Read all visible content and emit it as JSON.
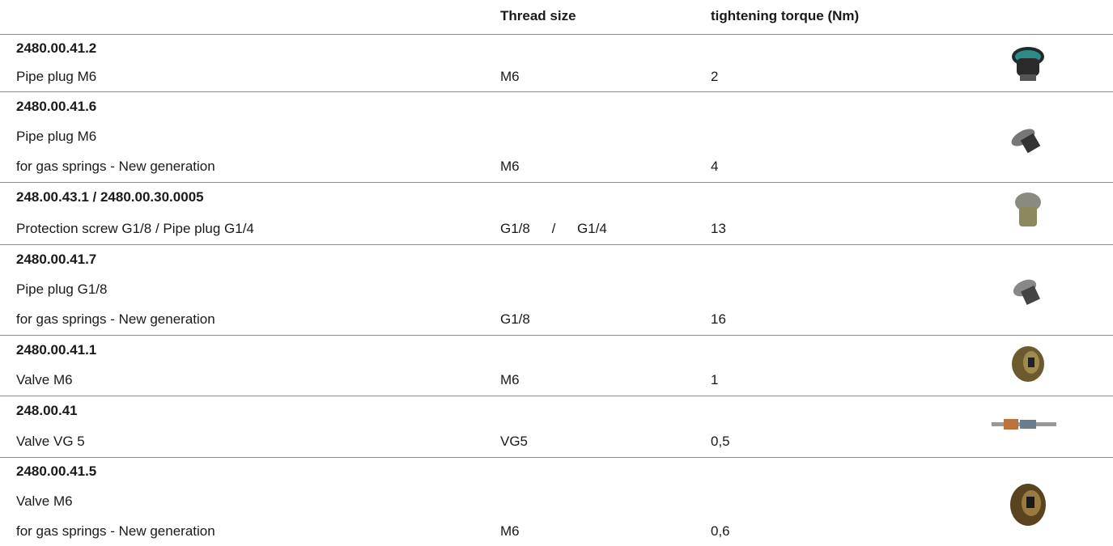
{
  "header": {
    "thread": "Thread size",
    "torque": "tightening torque (Nm)"
  },
  "groups": [
    {
      "code": "2480.00.41.2",
      "lines": [
        "Pipe plug M6"
      ],
      "thread": "M6",
      "torque": "2"
    },
    {
      "code": "2480.00.41.6",
      "lines": [
        "Pipe plug M6",
        "for gas springs - New generation"
      ],
      "thread": "M6",
      "torque": "4"
    },
    {
      "code": "248.00.43.1 / 2480.00.30.0005",
      "lines": [
        "Protection screw G1/8 / Pipe plug G1/4"
      ],
      "thread": "G1/8 / G1/4",
      "torque": "13"
    },
    {
      "code": "2480.00.41.7",
      "lines": [
        "Pipe plug G1/8",
        "for gas springs - New generation"
      ],
      "thread": "G1/8",
      "torque": "16"
    },
    {
      "code": "2480.00.41.1",
      "lines": [
        "Valve M6"
      ],
      "thread": "M6",
      "torque": "1"
    },
    {
      "code": "248.00.41",
      "lines": [
        "Valve VG 5"
      ],
      "thread": "VG5",
      "torque": "0,5"
    },
    {
      "code": "2480.00.41.5",
      "lines": [
        "Valve M6",
        "for gas springs - New generation"
      ],
      "thread": "M6",
      "torque": "0,6"
    }
  ]
}
